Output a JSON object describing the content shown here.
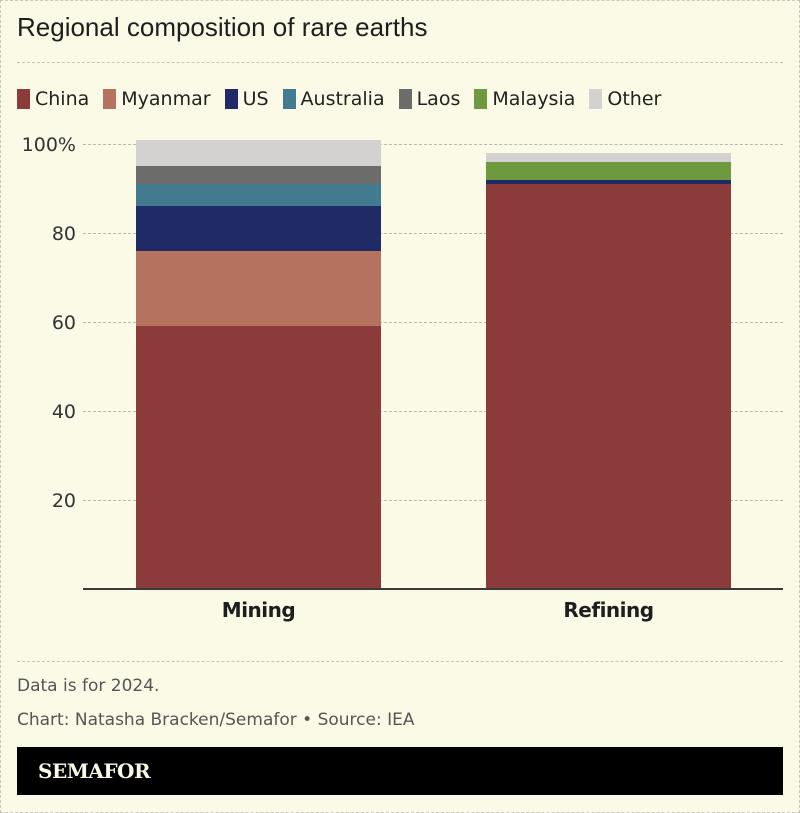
{
  "title": "Regional composition of rare earths",
  "legend": [
    {
      "label": "China",
      "color": "#8c3b3b"
    },
    {
      "label": "Myanmar",
      "color": "#b4725f"
    },
    {
      "label": "US",
      "color": "#1f2a67"
    },
    {
      "label": "Australia",
      "color": "#427a8f"
    },
    {
      "label": "Laos",
      "color": "#6c6c6a"
    },
    {
      "label": "Malaysia",
      "color": "#6e993e"
    },
    {
      "label": "Other",
      "color": "#d3d2d0"
    }
  ],
  "y_ticks": [
    "100%",
    "80",
    "60",
    "40",
    "20"
  ],
  "x_labels": [
    "Mining",
    "Refining"
  ],
  "notes": {
    "data_note": "Data is for 2024.",
    "credit": "Chart: Natasha Bracken/Semafor • Source: IEA"
  },
  "footer": {
    "brand": "SEMAFOR"
  },
  "chart_data": {
    "type": "bar",
    "stacked": true,
    "title": "Regional composition of rare earths",
    "categories": [
      "Mining",
      "Refining"
    ],
    "series": [
      {
        "name": "China",
        "values": [
          59,
          91
        ]
      },
      {
        "name": "Myanmar",
        "values": [
          17,
          0
        ]
      },
      {
        "name": "US",
        "values": [
          10,
          1
        ]
      },
      {
        "name": "Australia",
        "values": [
          5,
          0
        ]
      },
      {
        "name": "Laos",
        "values": [
          4,
          0
        ]
      },
      {
        "name": "Malaysia",
        "values": [
          0,
          4
        ]
      },
      {
        "name": "Other",
        "values": [
          6,
          2
        ]
      }
    ],
    "xlabel": "",
    "ylabel": "",
    "ylim": [
      0,
      100
    ],
    "y_tick_values": [
      20,
      40,
      60,
      80,
      100
    ],
    "grid": true,
    "legend_position": "top",
    "notes": [
      "Data is for 2024.",
      "Chart: Natasha Bracken/Semafor • Source: IEA"
    ]
  }
}
